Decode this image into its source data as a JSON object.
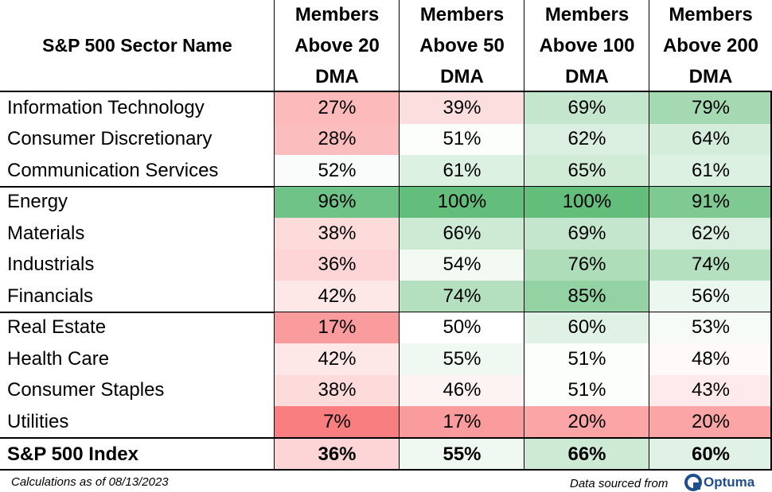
{
  "table": {
    "header": [
      "S&P 500 Sector Name",
      "Members Above 20 DMA",
      "Members Above 50 DMA",
      "Members Above 100 DMA",
      "Members Above 200 DMA"
    ],
    "groups": [
      {
        "rows": [
          [
            "Information Technology",
            "27%",
            "39%",
            "69%",
            "79%"
          ],
          [
            "Consumer Discretionary",
            "28%",
            "51%",
            "62%",
            "64%"
          ],
          [
            "Communication Services",
            "52%",
            "61%",
            "65%",
            "61%"
          ]
        ]
      },
      {
        "rows": [
          [
            "Energy",
            "96%",
            "100%",
            "100%",
            "91%"
          ],
          [
            "Materials",
            "38%",
            "66%",
            "69%",
            "62%"
          ],
          [
            "Industrials",
            "36%",
            "54%",
            "76%",
            "74%"
          ],
          [
            "Financials",
            "42%",
            "74%",
            "85%",
            "56%"
          ]
        ]
      },
      {
        "rows": [
          [
            "Real Estate",
            "17%",
            "50%",
            "60%",
            "53%"
          ],
          [
            "Health Care",
            "42%",
            "55%",
            "51%",
            "48%"
          ],
          [
            "Consumer Staples",
            "38%",
            "46%",
            "51%",
            "43%"
          ],
          [
            "Utilities",
            "7%",
            "17%",
            "20%",
            "20%"
          ]
        ]
      }
    ],
    "total": [
      "S&P 500 Index",
      "36%",
      "55%",
      "66%",
      "60%"
    ]
  },
  "footer": {
    "note": "Calculations as of 08/13/2023",
    "source": "Data sourced from",
    "logo": "Optuma"
  }
}
